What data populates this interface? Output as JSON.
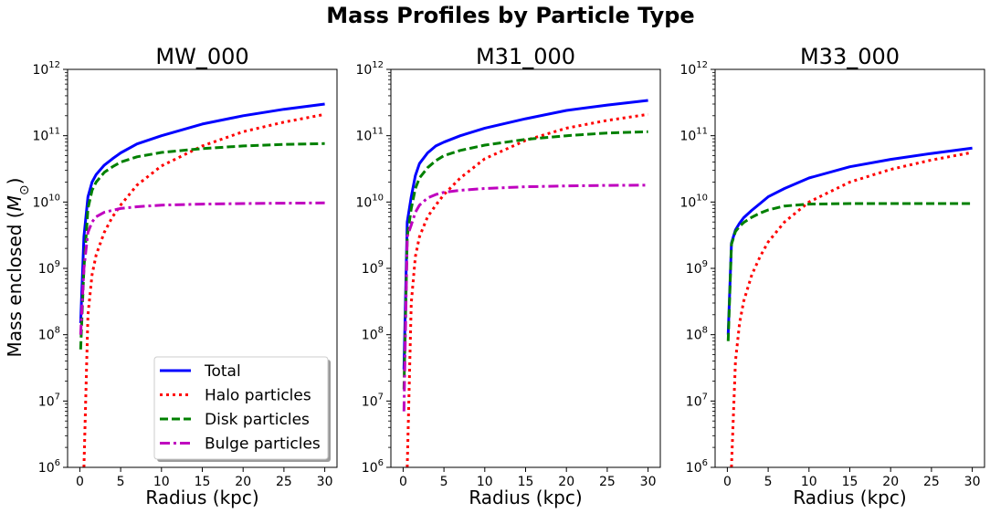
{
  "figure": {
    "suptitle": "Mass Profiles by Particle Type",
    "ylabel": "Mass enclosed",
    "ylabel_unit": "M",
    "ylabel_sub": "⊙",
    "xlabel": "Radius (kpc)"
  },
  "legend": {
    "placement": "lower-right of first panel",
    "entries": [
      {
        "label": "Total",
        "color": "#0000ff",
        "style": "solid"
      },
      {
        "label": "Halo particles",
        "color": "#ff0000",
        "style": "dotted"
      },
      {
        "label": "Disk particles",
        "color": "#008000",
        "style": "dashed"
      },
      {
        "label": "Bulge particles",
        "color": "#bf00bf",
        "style": "dashdot"
      }
    ]
  },
  "chart_data": [
    {
      "type": "line",
      "title": "MW_000",
      "xlabel": "Radius (kpc)",
      "ylabel": "Mass enclosed (M⊙)",
      "yscale": "log",
      "xlim": [
        -1.5,
        31.5
      ],
      "ylim": [
        1000000.0,
        1000000000000.0
      ],
      "xticks": [
        0,
        5,
        10,
        15,
        20,
        25,
        30
      ],
      "yticks": [
        1000000.0,
        10000000.0,
        100000000.0,
        1000000000.0,
        10000000000.0,
        100000000000.0,
        1000000000000.0
      ],
      "x": [
        0.1,
        0.5,
        1,
        1.5,
        2,
        3,
        4,
        5,
        7,
        10,
        15,
        20,
        25,
        30
      ],
      "series": [
        {
          "name": "Total",
          "color": "#0000ff",
          "style": "solid",
          "values": [
            150000000.0,
            3000000000.0,
            12000000000.0,
            20000000000.0,
            26000000000.0,
            36000000000.0,
            45000000000.0,
            55000000000.0,
            75000000000.0,
            100000000000.0,
            150000000000.0,
            200000000000.0,
            250000000000.0,
            300000000000.0
          ]
        },
        {
          "name": "Halo particles",
          "color": "#ff0000",
          "style": "dotted",
          "values": [
            null,
            1000000.0,
            200000000.0,
            800000000.0,
            1600000000.0,
            3500000000.0,
            6000000000.0,
            9000000000.0,
            18000000000.0,
            35000000000.0,
            70000000000.0,
            115000000000.0,
            160000000000.0,
            210000000000.0
          ]
        },
        {
          "name": "Disk particles",
          "color": "#008000",
          "style": "dashed",
          "values": [
            60000000.0,
            1000000000.0,
            8000000000.0,
            15000000000.0,
            20000000000.0,
            28000000000.0,
            34000000000.0,
            40000000000.0,
            48000000000.0,
            56000000000.0,
            64000000000.0,
            70000000000.0,
            74000000000.0,
            76000000000.0
          ]
        },
        {
          "name": "Bulge particles",
          "color": "#bf00bf",
          "style": "dashdot",
          "values": [
            100000000.0,
            1000000000.0,
            3500000000.0,
            5000000000.0,
            6000000000.0,
            7000000000.0,
            7500000000.0,
            8000000000.0,
            8500000000.0,
            9000000000.0,
            9300000000.0,
            9500000000.0,
            9600000000.0,
            9700000000.0
          ]
        }
      ]
    },
    {
      "type": "line",
      "title": "M31_000",
      "xlabel": "Radius (kpc)",
      "yscale": "log",
      "xlim": [
        -1.5,
        31.5
      ],
      "ylim": [
        1000000.0,
        1000000000000.0
      ],
      "xticks": [
        0,
        5,
        10,
        15,
        20,
        25,
        30
      ],
      "yticks": [
        1000000.0,
        10000000.0,
        100000000.0,
        1000000000.0,
        10000000000.0,
        100000000000.0,
        1000000000000.0
      ],
      "x": [
        0.1,
        0.5,
        1,
        1.5,
        2,
        3,
        4,
        5,
        7,
        10,
        15,
        20,
        25,
        30
      ],
      "series": [
        {
          "name": "Total",
          "color": "#0000ff",
          "style": "solid",
          "values": [
            30000000.0,
            5000000000.0,
            12000000000.0,
            25000000000.0,
            38000000000.0,
            55000000000.0,
            70000000000.0,
            80000000000.0,
            100000000000.0,
            130000000000.0,
            180000000000.0,
            240000000000.0,
            290000000000.0,
            340000000000.0
          ]
        },
        {
          "name": "Halo particles",
          "color": "#ff0000",
          "style": "dotted",
          "values": [
            null,
            1000000.0,
            300000000.0,
            1500000000.0,
            3000000000.0,
            6000000000.0,
            9000000000.0,
            13000000000.0,
            23000000000.0,
            45000000000.0,
            85000000000.0,
            130000000000.0,
            170000000000.0,
            210000000000.0
          ]
        },
        {
          "name": "Disk particles",
          "color": "#008000",
          "style": "dashed",
          "values": [
            15000000.0,
            3000000000.0,
            8000000000.0,
            16000000000.0,
            23000000000.0,
            33000000000.0,
            42000000000.0,
            50000000000.0,
            60000000000.0,
            72000000000.0,
            88000000000.0,
            100000000000.0,
            110000000000.0,
            115000000000.0
          ]
        },
        {
          "name": "Bulge particles",
          "color": "#bf00bf",
          "style": "dashdot",
          "values": [
            7000000.0,
            3000000000.0,
            4500000000.0,
            7000000000.0,
            9000000000.0,
            11500000000.0,
            13000000000.0,
            14000000000.0,
            15000000000.0,
            16000000000.0,
            17000000000.0,
            17500000000.0,
            17800000000.0,
            18000000000.0
          ]
        }
      ]
    },
    {
      "type": "line",
      "title": "M33_000",
      "xlabel": "Radius (kpc)",
      "yscale": "log",
      "xlim": [
        -1.5,
        31.5
      ],
      "ylim": [
        1000000.0,
        1000000000000.0
      ],
      "xticks": [
        0,
        5,
        10,
        15,
        20,
        25,
        30
      ],
      "yticks": [
        1000000.0,
        10000000.0,
        100000000.0,
        1000000000.0,
        10000000000.0,
        100000000000.0,
        1000000000000.0
      ],
      "x": [
        0.1,
        0.5,
        1,
        1.5,
        2,
        3,
        4,
        5,
        7,
        10,
        15,
        20,
        25,
        30
      ],
      "series": [
        {
          "name": "Total",
          "color": "#0000ff",
          "style": "solid",
          "values": [
            100000000.0,
            2400000000.0,
            3800000000.0,
            4800000000.0,
            5800000000.0,
            7500000000.0,
            9500000000.0,
            12000000000.0,
            16000000000.0,
            23000000000.0,
            34000000000.0,
            44000000000.0,
            54000000000.0,
            65000000000.0
          ]
        },
        {
          "name": "Halo particles",
          "color": "#ff0000",
          "style": "dotted",
          "values": [
            null,
            1000000.0,
            40000000.0,
            150000000.0,
            320000000.0,
            800000000.0,
            1500000000.0,
            2500000000.0,
            5000000000.0,
            10000000000.0,
            20000000000.0,
            31000000000.0,
            43000000000.0,
            56000000000.0
          ]
        },
        {
          "name": "Disk particles",
          "color": "#008000",
          "style": "dashed",
          "values": [
            80000000.0,
            2300000000.0,
            3600000000.0,
            4300000000.0,
            4900000000.0,
            5900000000.0,
            6800000000.0,
            7600000000.0,
            8700000000.0,
            9300000000.0,
            9500000000.0,
            9500000000.0,
            9500000000.0,
            9500000000.0
          ]
        }
      ]
    }
  ]
}
